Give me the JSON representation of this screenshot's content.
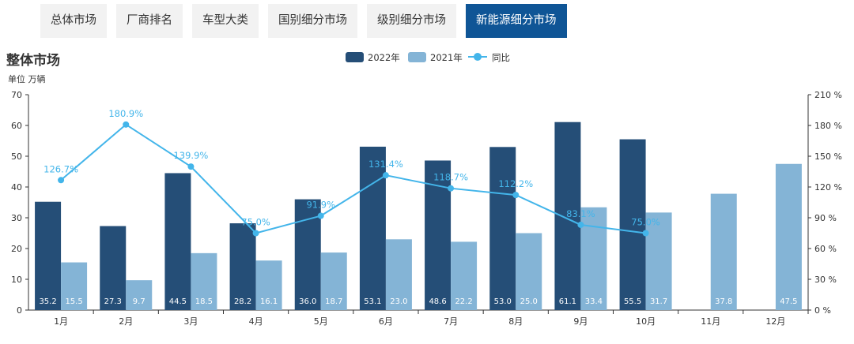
{
  "tabs": [
    {
      "label": "总体市场"
    },
    {
      "label": "厂商排名"
    },
    {
      "label": "车型大类"
    },
    {
      "label": "国别细分市场"
    },
    {
      "label": "级别细分市场"
    },
    {
      "label": "新能源细分市场",
      "active": true
    }
  ],
  "title": "整体市场",
  "unit": "单位 万辆",
  "colors": {
    "s2022": "#254e77",
    "s2021": "#84b4d6",
    "yoy": "#43b5ea",
    "active_tab": "#0f5596"
  },
  "chart_data": {
    "type": "bar",
    "categories": [
      "1月",
      "2月",
      "3月",
      "4月",
      "5月",
      "6月",
      "7月",
      "8月",
      "9月",
      "10月",
      "11月",
      "12月"
    ],
    "series": [
      {
        "name": "2022年",
        "type": "bar",
        "values": [
          35.2,
          27.3,
          44.5,
          28.2,
          36.0,
          53.1,
          48.6,
          53.0,
          61.1,
          55.5,
          null,
          null
        ]
      },
      {
        "name": "2021年",
        "type": "bar",
        "values": [
          15.5,
          9.7,
          18.5,
          16.1,
          18.7,
          23.0,
          22.2,
          25.0,
          33.4,
          31.7,
          37.8,
          47.5
        ]
      },
      {
        "name": "同比",
        "type": "line",
        "axis": "right",
        "values": [
          126.7,
          180.9,
          139.9,
          75.0,
          91.9,
          131.4,
          118.7,
          112.2,
          83.1,
          75.0,
          null,
          null
        ]
      }
    ],
    "ylim": [
      0,
      70
    ],
    "yticks": [
      0,
      10,
      20,
      30,
      40,
      50,
      60,
      70
    ],
    "y2lim": [
      0,
      210
    ],
    "y2ticks": [
      "0 %",
      "30 %",
      "60 %",
      "90 %",
      "120 %",
      "150 %",
      "180 %",
      "210 %"
    ],
    "legend": "top-center"
  }
}
